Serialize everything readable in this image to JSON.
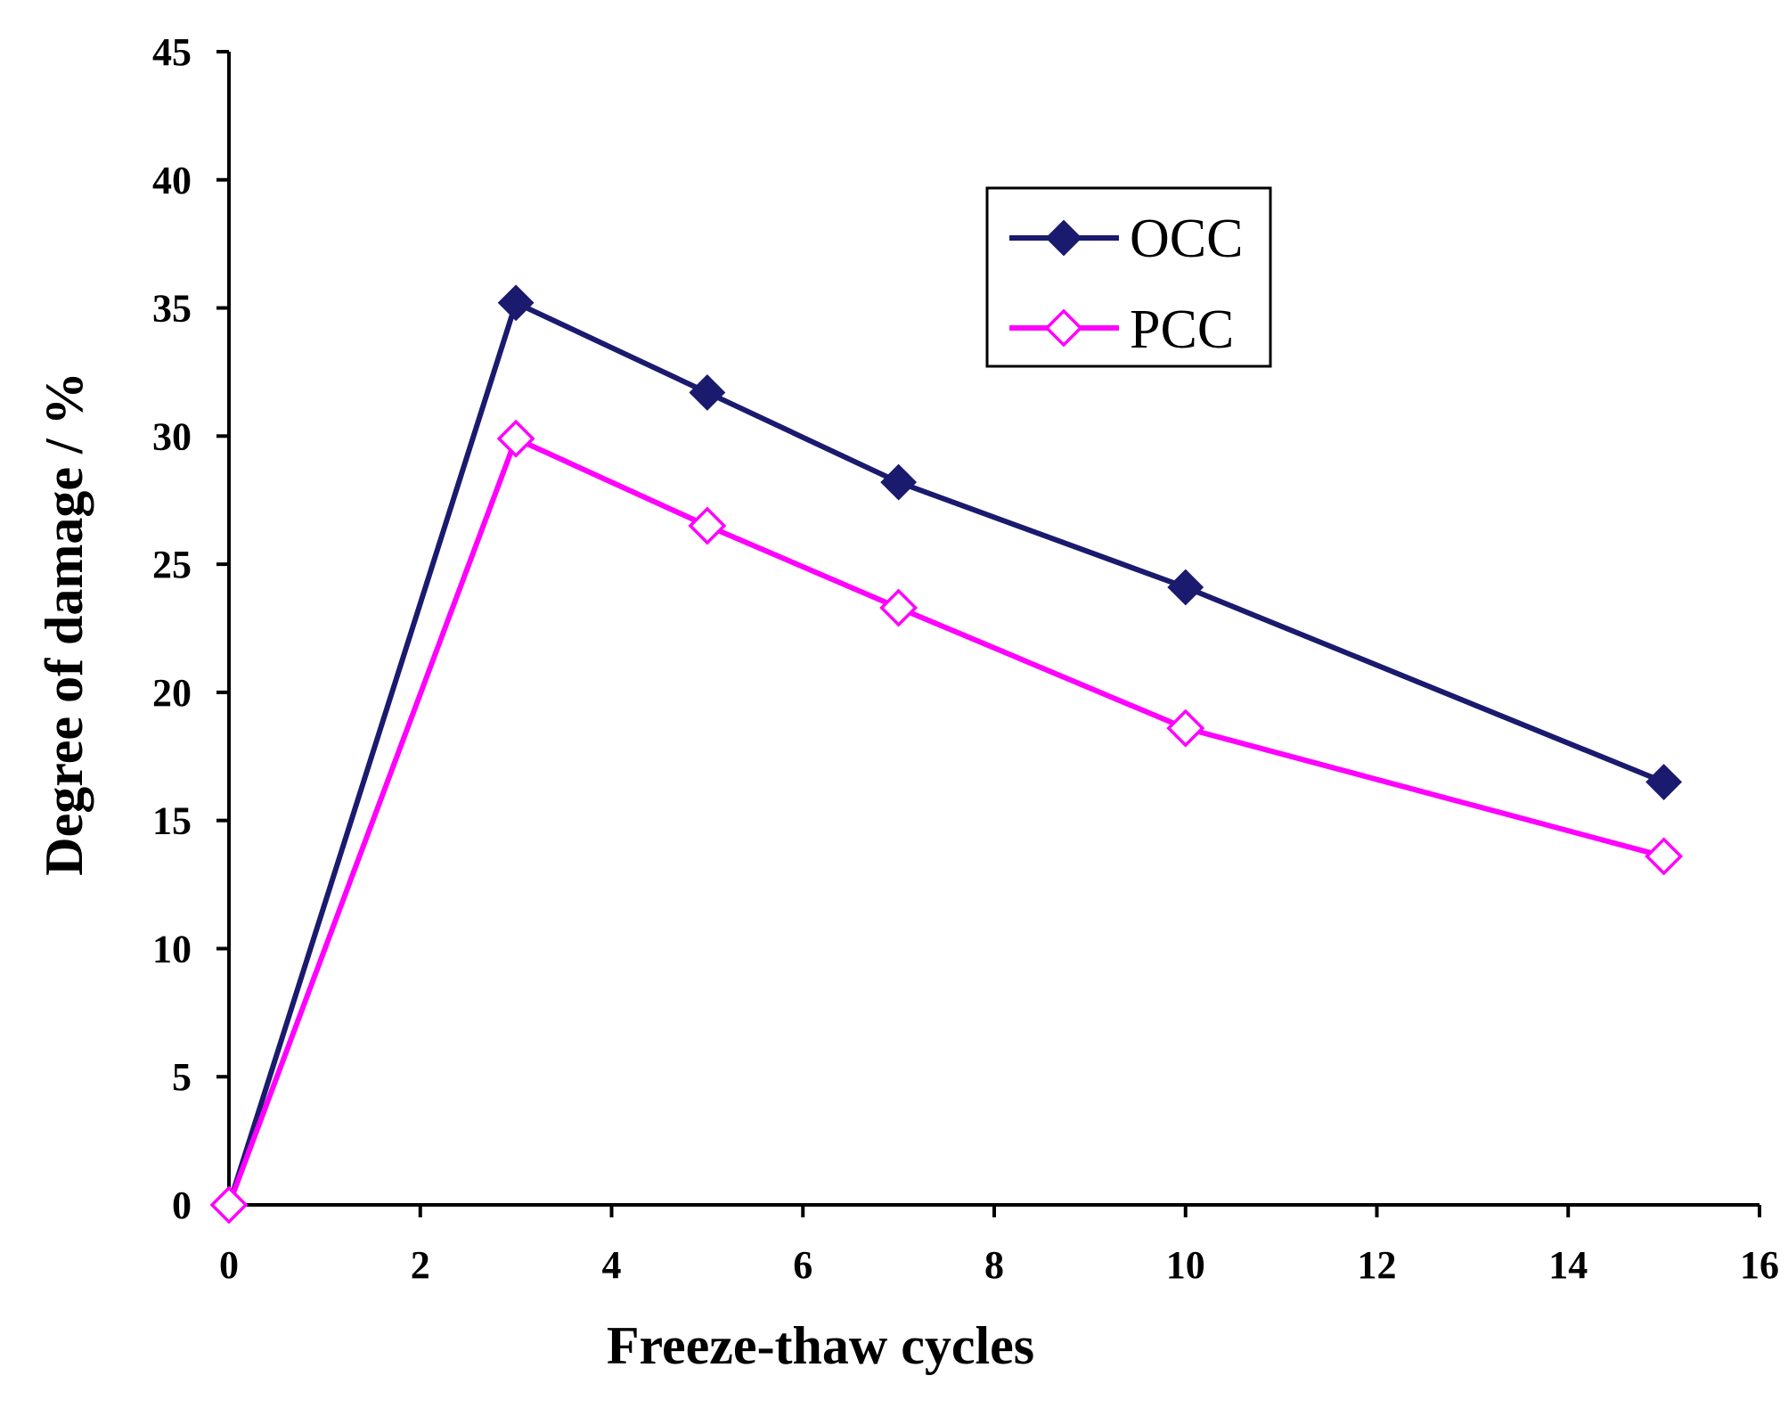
{
  "chart_data": {
    "type": "line",
    "title": "",
    "xlabel": "Freeze-thaw cycles",
    "ylabel": "Degree of damage / %",
    "xlim": [
      0,
      16
    ],
    "ylim": [
      0,
      45
    ],
    "xticks": [
      0,
      2,
      4,
      6,
      8,
      10,
      12,
      14,
      16
    ],
    "yticks": [
      0,
      5,
      10,
      15,
      20,
      25,
      30,
      35,
      40,
      45
    ],
    "grid": false,
    "legend_position": "top-right",
    "x": [
      0,
      3,
      5,
      7,
      10,
      15
    ],
    "series": [
      {
        "name": "OCC",
        "color": "#1a1a6e",
        "marker": "filled-diamond",
        "values": [
          0,
          35.2,
          31.7,
          28.2,
          24.1,
          16.5
        ]
      },
      {
        "name": "PCC",
        "color": "#ff00ff",
        "marker": "open-diamond",
        "values": [
          0,
          29.9,
          26.5,
          23.3,
          18.6,
          13.6
        ]
      }
    ]
  }
}
